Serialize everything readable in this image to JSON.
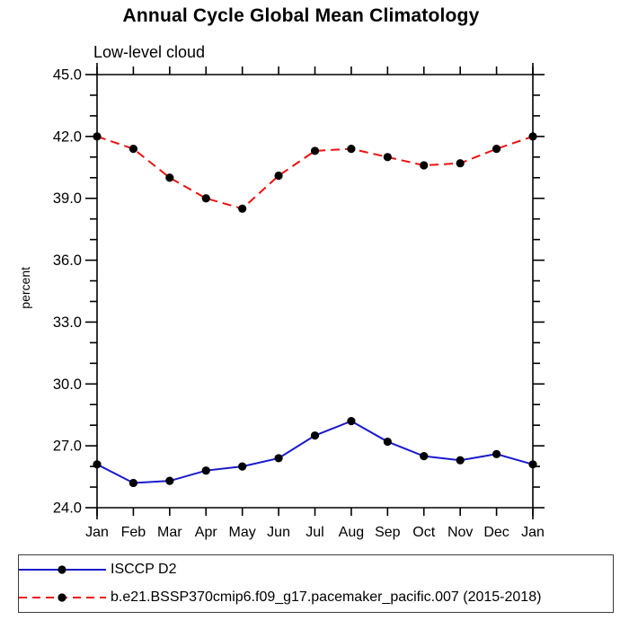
{
  "page": {
    "background": "#ffffff"
  },
  "chart_data": {
    "type": "line",
    "title": "Annual Cycle Global Mean Climatology",
    "subtitle": "Low-level cloud",
    "ylabel": "percent",
    "categories": [
      "Jan",
      "Feb",
      "Mar",
      "Apr",
      "May",
      "Jun",
      "Jul",
      "Aug",
      "Sep",
      "Oct",
      "Nov",
      "Dec",
      "Jan"
    ],
    "ylim": [
      24.0,
      45.0
    ],
    "ytick_labels": [
      "24.0",
      "27.0",
      "30.0",
      "33.0",
      "36.0",
      "39.0",
      "42.0",
      "45.0"
    ],
    "ytick_major_interval": 3.0,
    "ytick_minor_interval": 1.0,
    "grid": false,
    "legend_position": "bottom",
    "axis_color": "#000000",
    "series": [
      {
        "name": "ISCCP D2",
        "color": "#1a1acc",
        "line_style": "solid",
        "marker": "filled-circle",
        "marker_color": "#000000",
        "values": [
          26.1,
          25.2,
          25.3,
          25.8,
          26.0,
          26.4,
          27.5,
          28.2,
          27.2,
          26.5,
          26.3,
          26.6,
          26.1
        ]
      },
      {
        "name": "b.e21.BSSP370cmip6.f09_g17.pacemaker_pacific.007 (2015-2018)",
        "color": "#ee1111",
        "line_style": "dashed",
        "marker": "filled-circle",
        "marker_color": "#000000",
        "values": [
          42.0,
          41.4,
          40.0,
          39.0,
          38.5,
          40.1,
          41.3,
          41.4,
          41.0,
          40.6,
          40.7,
          41.4,
          42.0
        ]
      }
    ]
  }
}
